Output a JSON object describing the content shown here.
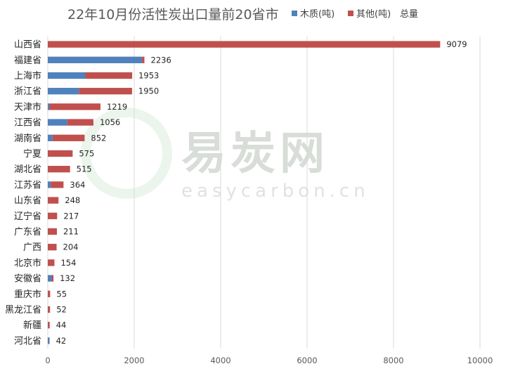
{
  "chart_data": {
    "type": "bar",
    "orientation": "horizontal",
    "stacked": true,
    "title": "22年10月份活性炭出口量前20省市",
    "categories": [
      "山西省",
      "福建省",
      "上海市",
      "浙江省",
      "天津市",
      "江西省",
      "湖南省",
      "宁夏",
      "湖北省",
      "江苏省",
      "山东省",
      "辽宁省",
      "广东省",
      "广西",
      "北京市",
      "安徽省",
      "重庆市",
      "黑龙江省",
      "新疆",
      "河北省"
    ],
    "series": [
      {
        "name": "木质(吨)",
        "color": "#4f81bd",
        "values": [
          0,
          2180,
          870,
          720,
          40,
          450,
          110,
          0,
          0,
          70,
          0,
          0,
          0,
          0,
          0,
          90,
          0,
          0,
          0,
          42
        ]
      },
      {
        "name": "其他(吨)",
        "color": "#c0504d",
        "values": [
          9079,
          56,
          1083,
          1230,
          1179,
          606,
          742,
          575,
          515,
          294,
          248,
          217,
          211,
          204,
          154,
          42,
          55,
          52,
          44,
          0
        ]
      }
    ],
    "totals": {
      "name": "总量",
      "values": [
        9079,
        2236,
        1953,
        1950,
        1219,
        1056,
        852,
        575,
        515,
        364,
        248,
        217,
        211,
        204,
        154,
        132,
        55,
        52,
        44,
        42
      ]
    },
    "xlim": [
      0,
      10000
    ],
    "xticks": [
      0,
      2000,
      4000,
      6000,
      8000,
      10000
    ],
    "grid": true,
    "legend_position": "top-right"
  },
  "watermark": {
    "main": "易炭网",
    "sub": "easycarbon.cn",
    "color": "#c5e3c8"
  }
}
